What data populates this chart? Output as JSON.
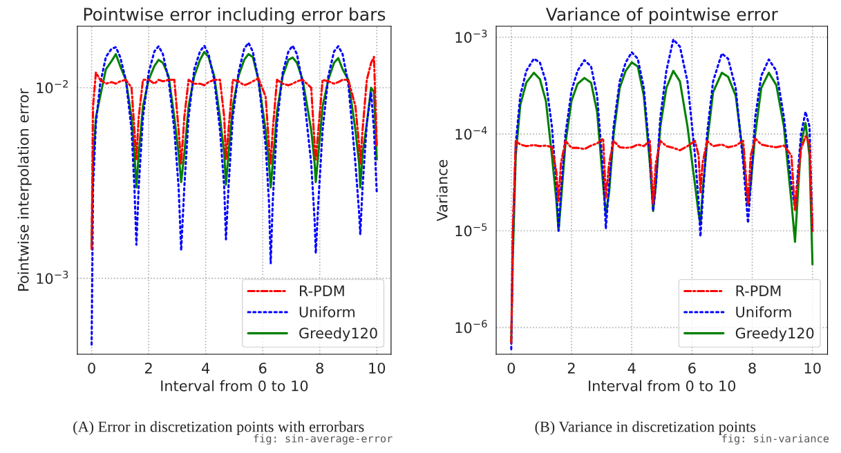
{
  "chart_data": [
    {
      "type": "line",
      "title": "Pointwise error including error bars",
      "xlabel": "Interval from 0 to 10",
      "ylabel": "Pointwise interpolation error",
      "log": "y",
      "grid": true,
      "legend": "bottom right",
      "xlim": [
        -0.5,
        10.5
      ],
      "xticks": [
        0,
        2,
        4,
        6,
        8,
        10
      ],
      "ylim": [
        0.0004,
        0.021
      ],
      "yticks": [
        {
          "value": 0.001,
          "label": "10$^{−3}$"
        },
        {
          "value": 0.01,
          "label": "10$^{−2}$"
        }
      ],
      "annotations": [
        "(A) Error in discretization points with errorbars",
        "fig: sin-average-error"
      ],
      "x": [
        0,
        0.05,
        0.15,
        0.3,
        0.5,
        0.7,
        0.85,
        1.0,
        1.2,
        1.4,
        1.5,
        1.57,
        1.65,
        1.8,
        2.0,
        2.2,
        2.35,
        2.5,
        2.7,
        2.9,
        3.05,
        3.14,
        3.25,
        3.4,
        3.6,
        3.8,
        3.95,
        4.1,
        4.3,
        4.5,
        4.65,
        4.71,
        4.8,
        4.95,
        5.15,
        5.35,
        5.5,
        5.65,
        5.85,
        6.1,
        6.22,
        6.28,
        6.35,
        6.5,
        6.7,
        6.9,
        7.05,
        7.2,
        7.4,
        7.7,
        7.82,
        7.86,
        7.95,
        8.1,
        8.3,
        8.5,
        8.65,
        8.8,
        9.0,
        9.25,
        9.38,
        9.42,
        9.5,
        9.65,
        9.8,
        9.9,
        10
      ],
      "series": [
        {
          "name": "R-PDM",
          "color": "#ff0000",
          "line_style": "dashdot",
          "values": [
            0.00143,
            0.008,
            0.012,
            0.011,
            0.0105,
            0.0107,
            0.0105,
            0.0108,
            0.011,
            0.01,
            0.006,
            0.0042,
            0.007,
            0.011,
            0.011,
            0.0105,
            0.011,
            0.0108,
            0.011,
            0.011,
            0.006,
            0.004,
            0.007,
            0.011,
            0.0105,
            0.0105,
            0.0103,
            0.0107,
            0.011,
            0.011,
            0.007,
            0.0042,
            0.006,
            0.011,
            0.0108,
            0.0103,
            0.0105,
            0.0108,
            0.0112,
            0.009,
            0.005,
            0.004,
            0.006,
            0.011,
            0.0105,
            0.0103,
            0.0105,
            0.0108,
            0.011,
            0.01,
            0.005,
            0.0042,
            0.006,
            0.011,
            0.0108,
            0.0105,
            0.0107,
            0.011,
            0.011,
            0.008,
            0.005,
            0.004,
            0.006,
            0.011,
            0.0135,
            0.0145,
            0.005
          ]
        },
        {
          "name": "Uniform",
          "color": "#0000ff",
          "line_style": "dotted",
          "values": [
            0.00045,
            0.003,
            0.0065,
            0.0105,
            0.0145,
            0.016,
            0.0163,
            0.0145,
            0.011,
            0.006,
            0.003,
            0.0015,
            0.003,
            0.007,
            0.012,
            0.0155,
            0.0165,
            0.015,
            0.011,
            0.006,
            0.003,
            0.0014,
            0.003,
            0.007,
            0.0125,
            0.0155,
            0.0166,
            0.015,
            0.011,
            0.006,
            0.003,
            0.0016,
            0.003,
            0.007,
            0.012,
            0.016,
            0.0172,
            0.0155,
            0.011,
            0.005,
            0.0025,
            0.0012,
            0.0025,
            0.0065,
            0.012,
            0.0155,
            0.0166,
            0.015,
            0.0105,
            0.004,
            0.002,
            0.00135,
            0.0025,
            0.006,
            0.0115,
            0.0155,
            0.0165,
            0.015,
            0.0105,
            0.004,
            0.0022,
            0.0017,
            0.003,
            0.0065,
            0.0095,
            0.006,
            0.0028
          ]
        },
        {
          "name": "Greedy120",
          "color": "#008000",
          "line_style": "solid",
          "values": [
            0.00143,
            0.004,
            0.007,
            0.009,
            0.0125,
            0.0138,
            0.015,
            0.013,
            0.011,
            0.007,
            0.0045,
            0.003,
            0.0045,
            0.008,
            0.011,
            0.013,
            0.014,
            0.0135,
            0.0115,
            0.007,
            0.0045,
            0.0032,
            0.0045,
            0.008,
            0.0115,
            0.014,
            0.0154,
            0.0145,
            0.0115,
            0.007,
            0.0045,
            0.0031,
            0.0045,
            0.008,
            0.0115,
            0.014,
            0.015,
            0.0145,
            0.011,
            0.006,
            0.004,
            0.003,
            0.004,
            0.0075,
            0.0115,
            0.014,
            0.0144,
            0.0135,
            0.011,
            0.006,
            0.004,
            0.0032,
            0.0045,
            0.008,
            0.011,
            0.0135,
            0.0143,
            0.0125,
            0.011,
            0.006,
            0.004,
            0.003,
            0.0045,
            0.0065,
            0.01,
            0.0095,
            0.0042
          ]
        }
      ]
    },
    {
      "type": "line",
      "title": "Variance of pointwise error",
      "xlabel": "Interval from 0 to 10",
      "ylabel": "Variance",
      "log": "y",
      "grid": true,
      "legend": "bottom right",
      "xlim": [
        -0.5,
        10.5
      ],
      "xticks": [
        0,
        2,
        4,
        6,
        8,
        10
      ],
      "ylim": [
        5.3e-07,
        0.0013
      ],
      "yticks": [
        {
          "value": 1e-06,
          "label": "10$^{−6}$"
        },
        {
          "value": 1e-05,
          "label": "10$^{−5}$"
        },
        {
          "value": 0.0001,
          "label": "10$^{−4}$"
        },
        {
          "value": 0.001,
          "label": "10$^{−3}$"
        }
      ],
      "annotations": [
        "(B) Variance in discretization points",
        "fig: sin-variance"
      ],
      "x": [
        0,
        0.05,
        0.15,
        0.3,
        0.5,
        0.75,
        0.95,
        1.15,
        1.35,
        1.5,
        1.57,
        1.65,
        1.8,
        2.0,
        2.2,
        2.43,
        2.65,
        2.85,
        3.05,
        3.14,
        3.25,
        3.4,
        3.6,
        3.8,
        4.0,
        4.2,
        4.4,
        4.6,
        4.71,
        4.8,
        4.95,
        5.15,
        5.38,
        5.6,
        5.85,
        6.1,
        6.22,
        6.28,
        6.35,
        6.5,
        6.7,
        6.99,
        7.2,
        7.45,
        7.7,
        7.86,
        7.95,
        8.1,
        8.3,
        8.55,
        8.8,
        9.05,
        9.3,
        9.42,
        9.5,
        9.62,
        9.77,
        9.9,
        10
      ],
      "series": [
        {
          "name": "R-PDM",
          "color": "#ff0000",
          "line_style": "dashdot",
          "values": [
            7e-07,
            1e-05,
            8.5e-05,
            7.8e-05,
            7.5e-05,
            7.7e-05,
            7.5e-05,
            7.6e-05,
            7.3e-05,
            4e-05,
            2e-05,
            5e-05,
            8.5e-05,
            7.2e-05,
            7.2e-05,
            7e-05,
            7.6e-05,
            8e-05,
            9e-05,
            2.2e-05,
            5e-05,
            8.5e-05,
            7.3e-05,
            7.2e-05,
            7.3e-05,
            7.8e-05,
            7.5e-05,
            8.5e-05,
            1.9e-05,
            5e-05,
            8.5e-05,
            7.5e-05,
            7.2e-05,
            6.8e-05,
            7.5e-05,
            8.5e-05,
            6e-05,
            2.5e-05,
            5e-05,
            8.5e-05,
            7.5e-05,
            7.8e-05,
            7.3e-05,
            7.6e-05,
            8.5e-05,
            1.9e-05,
            6e-05,
            9e-05,
            7.8e-05,
            7.5e-05,
            7.3e-05,
            7.6e-05,
            6e-05,
            1.6e-05,
            3e-05,
            7e-05,
            9.5e-05,
            8e-05,
            1e-05
          ]
        },
        {
          "name": "Uniform",
          "color": "#0000ff",
          "line_style": "dotted",
          "values": [
            6e-07,
            8e-06,
            8e-05,
            0.00025,
            0.00045,
            0.0006,
            0.00055,
            0.00035,
            0.00012,
            3e-05,
            1e-05,
            2.5e-05,
            0.0001,
            0.00028,
            0.00045,
            0.00058,
            0.0005,
            0.00025,
            4e-05,
            1.05e-05,
            3e-05,
            0.00012,
            0.00035,
            0.00055,
            0.0007,
            0.0006,
            0.0003,
            6e-05,
            1.6e-05,
            3e-05,
            0.00015,
            0.00045,
            0.00095,
            0.0008,
            0.00035,
            6e-05,
            2e-05,
            8.7e-06,
            2e-05,
            0.0001,
            0.00035,
            0.00068,
            0.0006,
            0.0003,
            5e-05,
            1.2e-05,
            3e-05,
            0.00015,
            0.0004,
            0.00059,
            0.00045,
            0.00015,
            3e-05,
            1.7e-05,
            3.5e-05,
            0.0001,
            0.00017,
            0.00012,
            1e-05
          ]
        },
        {
          "name": "Greedy120",
          "color": "#008000",
          "line_style": "solid",
          "values": [
            7e-07,
            5e-06,
            6e-05,
            0.0002,
            0.00034,
            0.00043,
            0.00037,
            0.00022,
            6e-05,
            2e-05,
            1e-05,
            2e-05,
            8e-05,
            0.00022,
            0.00033,
            0.00038,
            0.00034,
            0.00017,
            3e-05,
            1.5e-05,
            2.5e-05,
            0.0001,
            0.0003,
            0.00045,
            0.00055,
            0.0005,
            0.00025,
            5e-05,
            1.6e-05,
            3e-05,
            0.00012,
            0.0003,
            0.00045,
            0.00035,
            0.00012,
            3e-05,
            1.5e-05,
            1.17e-05,
            2.5e-05,
            8e-05,
            0.00027,
            0.00043,
            0.00039,
            0.00025,
            6e-05,
            1.86e-05,
            3e-05,
            0.0001,
            0.0003,
            0.00043,
            0.00032,
            0.00012,
            2e-05,
            7.7e-06,
            2e-05,
            8e-05,
            0.00013,
            6e-05,
            4.5e-06
          ]
        }
      ]
    }
  ]
}
